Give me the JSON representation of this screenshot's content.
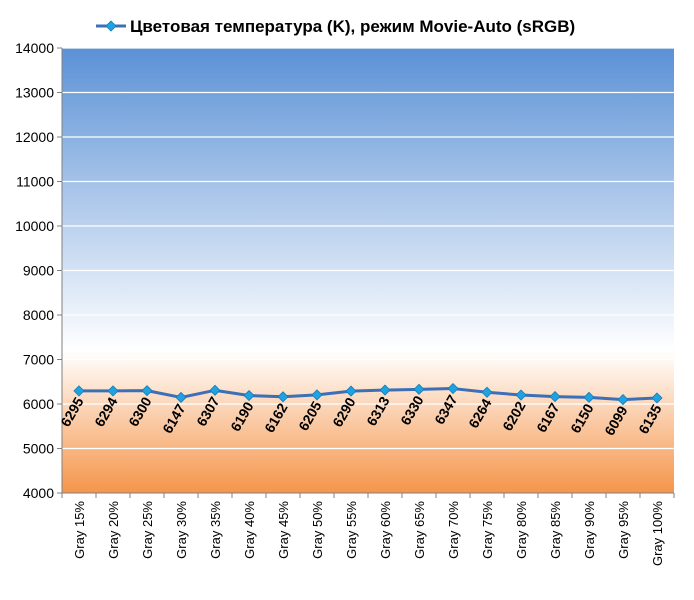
{
  "chart_data": {
    "type": "line",
    "title": "",
    "xlabel": "",
    "ylabel": "",
    "categories": [
      "Gray 15%",
      "Gray 20%",
      "Gray 25%",
      "Gray 30%",
      "Gray 35%",
      "Gray 40%",
      "Gray 45%",
      "Gray 50%",
      "Gray 55%",
      "Gray 60%",
      "Gray 65%",
      "Gray 70%",
      "Gray 75%",
      "Gray 80%",
      "Gray 85%",
      "Gray 90%",
      "Gray 95%",
      "Gray 100%"
    ],
    "series": [
      {
        "name": "Цветовая температура (K), режим Movie-Auto (sRGB)",
        "values": [
          6295,
          6294,
          6300,
          6147,
          6307,
          6190,
          6162,
          6205,
          6290,
          6313,
          6330,
          6347,
          6264,
          6202,
          6167,
          6150,
          6099,
          6135
        ],
        "color": "#3c6fb6",
        "marker_color": "#1ea3e0"
      }
    ],
    "ylim": [
      4000,
      14000
    ],
    "ytick_step": 1000,
    "grid": true,
    "legend_position": "top",
    "data_labels": true,
    "background_gradient": {
      "top": "#5b91d6",
      "middle": "#ffffff",
      "bottom": "#f5954a"
    }
  }
}
